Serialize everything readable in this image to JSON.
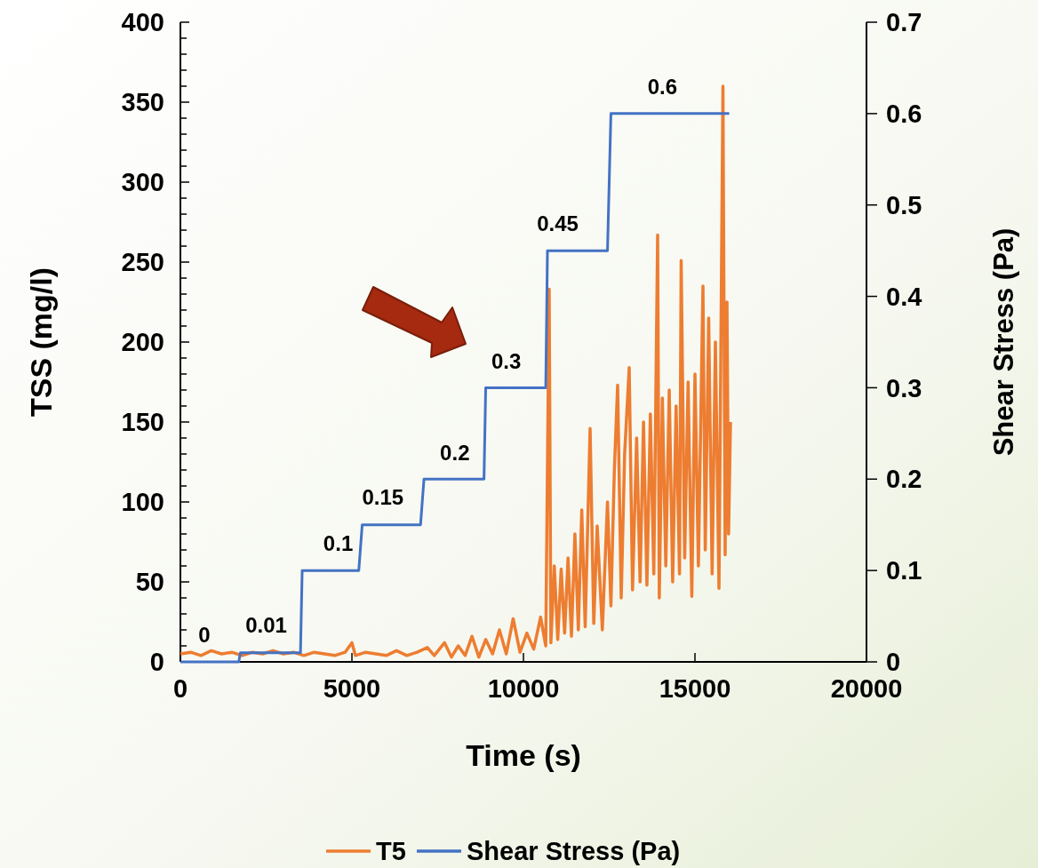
{
  "chart_data": {
    "type": "line",
    "xlabel": "Time (s)",
    "ylabel": "TSS (mg/l)",
    "y2label": "Shear Stress (Pa)",
    "xlim": [
      0,
      20000
    ],
    "xticks": [
      0,
      5000,
      10000,
      15000,
      20000
    ],
    "ylim": [
      0,
      400
    ],
    "yticks": [
      0,
      {
        "value": 10,
        "label": null
      },
      {
        "value": 20,
        "label": null
      },
      {
        "value": 30,
        "label": null
      },
      {
        "value": 40,
        "label": null
      },
      50,
      {
        "value": 60,
        "label": null
      },
      {
        "value": 70,
        "label": null
      },
      {
        "value": 80,
        "label": null
      },
      {
        "value": 90,
        "label": null
      },
      100,
      {
        "value": 110,
        "label": null
      },
      {
        "value": 120,
        "label": null
      },
      {
        "value": 130,
        "label": null
      },
      {
        "value": 140,
        "label": null
      },
      150,
      {
        "value": 160,
        "label": null
      },
      {
        "value": 170,
        "label": null
      },
      {
        "value": 180,
        "label": null
      },
      {
        "value": 190,
        "label": null
      },
      200,
      {
        "value": 210,
        "label": null
      },
      {
        "value": 220,
        "label": null
      },
      {
        "value": 230,
        "label": null
      },
      {
        "value": 240,
        "label": null
      },
      250,
      {
        "value": 260,
        "label": null
      },
      {
        "value": 270,
        "label": null
      },
      {
        "value": 280,
        "label": null
      },
      {
        "value": 290,
        "label": null
      },
      300,
      {
        "value": 310,
        "label": null
      },
      {
        "value": 320,
        "label": null
      },
      {
        "value": 330,
        "label": null
      },
      {
        "value": 340,
        "label": null
      },
      350,
      {
        "value": 360,
        "label": null
      },
      {
        "value": 370,
        "label": null
      },
      {
        "value": 380,
        "label": null
      },
      {
        "value": 390,
        "label": null
      },
      400
    ],
    "y2lim": [
      0,
      0.7
    ],
    "y2ticks": [
      0,
      0.1,
      0.2,
      0.3,
      0.4,
      0.5,
      0.6,
      0.7
    ],
    "grid": false,
    "legend": "bottom",
    "marker": "none",
    "line_style": "solid",
    "series": [
      {
        "name": "T5",
        "color": "#ed7d31",
        "x": [
          0,
          300,
          600,
          900,
          1200,
          1500,
          1800,
          2100,
          2400,
          2700,
          3000,
          3300,
          3600,
          3900,
          4200,
          4500,
          4800,
          5000,
          5100,
          5400,
          5700,
          6000,
          6300,
          6600,
          6900,
          7200,
          7400,
          7700,
          7900,
          8100,
          8300,
          8500,
          8700,
          8900,
          9100,
          9300,
          9500,
          9700,
          9900,
          10100,
          10300,
          10500,
          10650,
          10750,
          10800,
          10900,
          11000,
          11100,
          11200,
          11300,
          11400,
          11500,
          11600,
          11700,
          11800,
          11943,
          12050,
          12150,
          12300,
          12450,
          12550,
          12650,
          12746,
          12850,
          12950,
          13083,
          13180,
          13300,
          13400,
          13500,
          13600,
          13700,
          13800,
          13912,
          13960,
          14050,
          14150,
          14250,
          14350,
          14450,
          14550,
          14598,
          14700,
          14800,
          14908,
          15000,
          15100,
          15233,
          15300,
          15400,
          15500,
          15596,
          15700,
          15816,
          15880,
          15933,
          15980,
          16036
        ],
        "values": [
          5,
          6,
          4,
          7,
          5,
          6,
          4,
          6,
          5,
          7,
          5,
          6,
          4,
          6,
          5,
          4,
          6,
          12,
          4,
          6,
          5,
          4,
          7,
          4,
          6,
          9,
          4,
          12,
          3,
          10,
          4,
          16,
          3,
          14,
          5,
          20,
          5,
          27,
          6,
          18,
          8,
          28,
          10,
          233,
          12,
          60,
          14,
          58,
          18,
          65,
          16,
          80,
          20,
          95,
          22,
          146,
          24,
          85,
          20,
          100,
          35,
          120,
          173,
          40,
          130,
          184,
          45,
          140,
          50,
          150,
          48,
          155,
          55,
          267,
          40,
          165,
          60,
          170,
          50,
          160,
          55,
          251,
          65,
          175,
          41,
          180,
          60,
          235,
          70,
          215,
          55,
          200,
          46,
          360,
          67,
          225,
          80,
          150
        ]
      },
      {
        "name": "Shear Stress (Pa)",
        "color": "#4472c4",
        "axis": "y2",
        "x": [
          0,
          1700,
          1750,
          3500,
          3550,
          5200,
          5300,
          7000,
          7100,
          8850,
          8900,
          10650,
          10700,
          12450,
          12550,
          16000
        ],
        "values": [
          0,
          0,
          0.01,
          0.01,
          0.1,
          0.1,
          0.15,
          0.15,
          0.2,
          0.2,
          0.3,
          0.3,
          0.45,
          0.45,
          0.6,
          0.6
        ]
      }
    ],
    "annotations": [
      {
        "text": "0",
        "x": 700,
        "y": 0
      },
      {
        "text": "0.01",
        "x": 2500,
        "y": 6
      },
      {
        "text": "0.1",
        "x": 4600,
        "y": 57
      },
      {
        "text": "0.15",
        "x": 5900,
        "y": 86
      },
      {
        "text": "0.2",
        "x": 8000,
        "y": 114
      },
      {
        "text": "0.3",
        "x": 9500,
        "y": 171
      },
      {
        "text": "0.45",
        "x": 11000,
        "y": 257
      },
      {
        "text": "0.6",
        "x": 14050,
        "y": 343
      }
    ]
  }
}
